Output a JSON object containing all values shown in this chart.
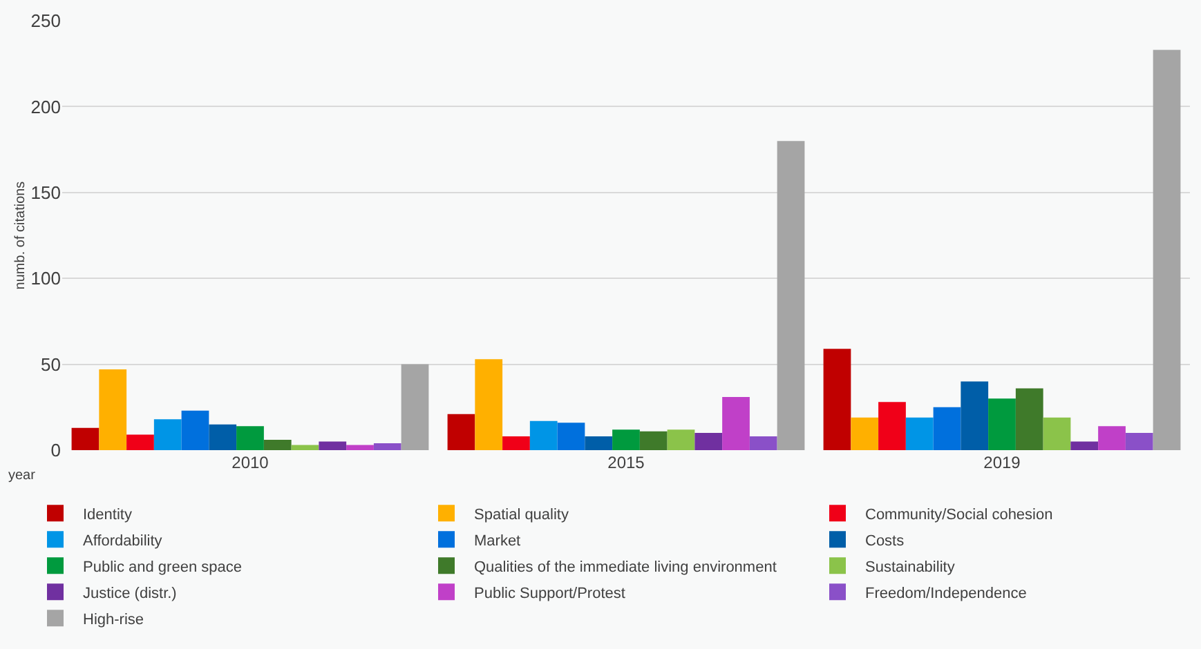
{
  "chart_data": {
    "type": "bar",
    "xlabel": "year",
    "ylabel": "numb. of citations",
    "categories": [
      "2010",
      "2015",
      "2019"
    ],
    "ylim": [
      0,
      250
    ],
    "yticks": [
      0,
      50,
      100,
      150,
      200,
      250
    ],
    "grid": "y",
    "legend": "bottom",
    "series": [
      {
        "name": "Identity",
        "color": "#c00000",
        "values": [
          13,
          21,
          59
        ]
      },
      {
        "name": "Spatial quality",
        "color": "#ffb000",
        "values": [
          47,
          53,
          19
        ]
      },
      {
        "name": "Community/Social cohesion",
        "color": "#f00018",
        "values": [
          9,
          8,
          28
        ]
      },
      {
        "name": "Affordability",
        "color": "#0095e6",
        "values": [
          18,
          17,
          19
        ]
      },
      {
        "name": "Market",
        "color": "#0070dd",
        "values": [
          23,
          16,
          25
        ]
      },
      {
        "name": "Costs",
        "color": "#005ea8",
        "values": [
          15,
          8,
          40
        ]
      },
      {
        "name": "Public and green space",
        "color": "#009a3e",
        "values": [
          14,
          12,
          30
        ]
      },
      {
        "name": "Qualities of the immediate living environment",
        "color": "#3f7a2a",
        "values": [
          6,
          11,
          36
        ]
      },
      {
        "name": "Sustainability",
        "color": "#8bc34a",
        "values": [
          3,
          12,
          19
        ]
      },
      {
        "name": "Justice (distr.)",
        "color": "#7030a0",
        "values": [
          5,
          10,
          5
        ]
      },
      {
        "name": "Public Support/Protest",
        "color": "#c040c8",
        "values": [
          3,
          31,
          14
        ]
      },
      {
        "name": "Freedom/Independence",
        "color": "#8a50c8",
        "values": [
          4,
          8,
          10
        ]
      },
      {
        "name": "High-rise",
        "color": "#a5a5a5",
        "values": [
          50,
          180,
          233
        ]
      }
    ]
  }
}
